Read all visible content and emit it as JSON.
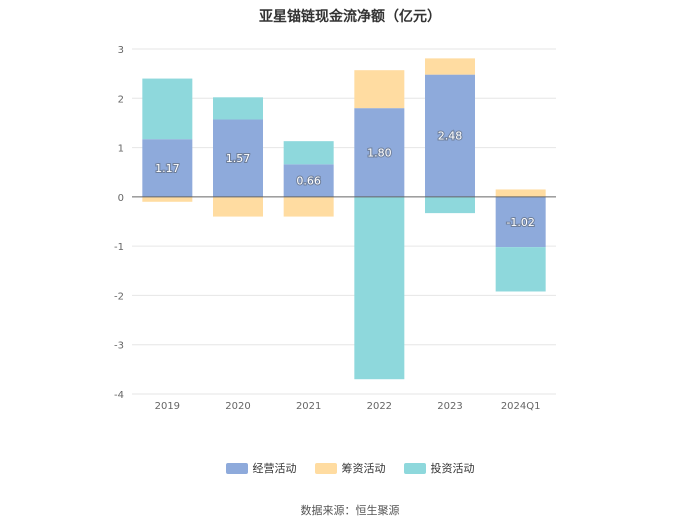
{
  "chart_data": {
    "type": "bar",
    "stacked": true,
    "title": "亚星锚链现金流净额（亿元）",
    "categories": [
      "2019",
      "2020",
      "2021",
      "2022",
      "2023",
      "2024Q1"
    ],
    "series": [
      {
        "name": "经营活动",
        "color": "#8eaadb",
        "values": [
          1.17,
          1.57,
          0.66,
          1.8,
          2.48,
          -1.02
        ],
        "labels": [
          "1.17",
          "1.57",
          "0.66",
          "1.80",
          "2.48",
          "-1.02"
        ]
      },
      {
        "name": "筹资活动",
        "color": "#ffdca1",
        "values": [
          -0.1,
          -0.4,
          -0.4,
          0.77,
          0.33,
          0.15
        ]
      },
      {
        "name": "投资活动",
        "color": "#8ed8dc",
        "values": [
          1.23,
          0.45,
          0.47,
          -3.7,
          -0.33,
          -0.9
        ]
      }
    ],
    "ylim": [
      -4,
      3
    ],
    "yticks": [
      "3",
      "2",
      "1",
      "0",
      "-1",
      "-2",
      "-3",
      "-4"
    ],
    "grid": true,
    "legend": "bottom",
    "source": "数据来源：恒生聚源"
  }
}
